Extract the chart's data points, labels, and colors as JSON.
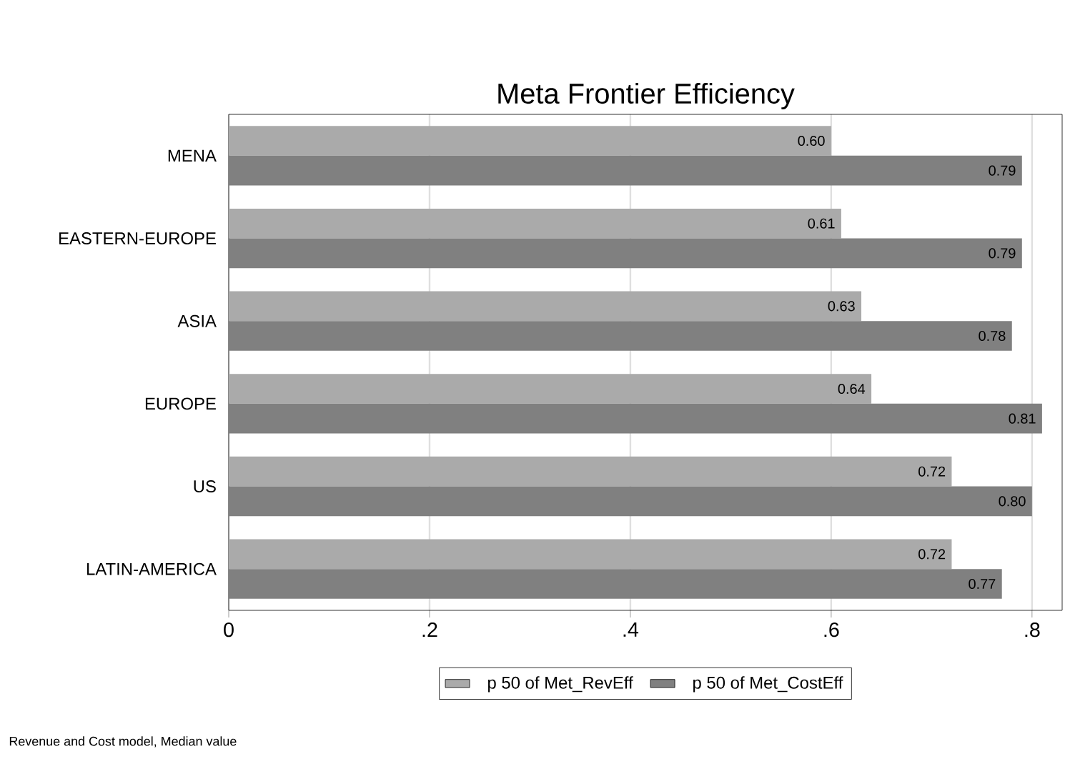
{
  "chart_data": {
    "type": "bar",
    "orientation": "horizontal",
    "title": "Meta Frontier Efficiency",
    "categories": [
      "MENA",
      "EASTERN-EUROPE",
      "ASIA",
      "EUROPE",
      "US",
      "LATIN-AMERICA"
    ],
    "series": [
      {
        "name": "p 50 of Met_RevEff",
        "color": "#aaaaaa",
        "values": [
          0.6,
          0.61,
          0.63,
          0.64,
          0.72,
          0.72
        ],
        "value_labels": [
          "0.60",
          "0.61",
          "0.63",
          "0.64",
          "0.72",
          "0.72"
        ]
      },
      {
        "name": "p 50 of Met_CostEff",
        "color": "#808080",
        "values": [
          0.79,
          0.79,
          0.78,
          0.81,
          0.8,
          0.77
        ],
        "value_labels": [
          "0.79",
          "0.79",
          "0.78",
          "0.81",
          "0.80",
          "0.77"
        ]
      }
    ],
    "xlim": [
      0,
      0.83
    ],
    "xticks": [
      0,
      {
        "value": 0.2,
        "label": ".2"
      },
      {
        "value": 0.4,
        "label": ".4"
      },
      {
        "value": 0.6,
        "label": ".6"
      },
      {
        "value": 0.8,
        "label": ".8"
      }
    ],
    "grid": "x",
    "legend": "bottom",
    "annotations": [
      "Revenue and Cost model, Median value"
    ]
  }
}
